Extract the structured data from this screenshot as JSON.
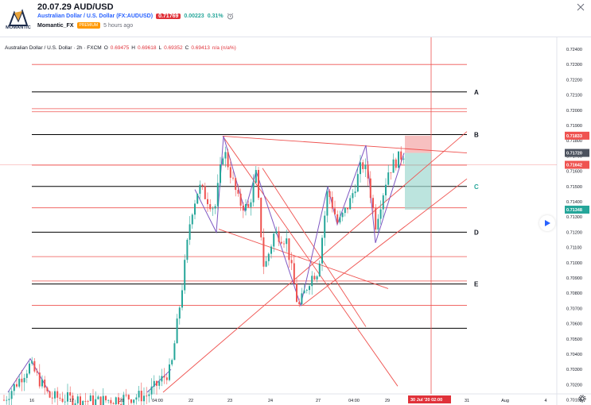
{
  "header": {
    "logo_text": "MOMANTIC",
    "title": "20.07.29 AUD/USD",
    "symbol_name": "Australian Dollar / U.S. Dollar (FX:AUDUSD)",
    "last_price": "0.71769",
    "change": "0.00223",
    "change_pct": "0.31%",
    "author": "Momantic_FX",
    "author_badge": "PREMIUM",
    "time_ago": "5 hours ago"
  },
  "chart": {
    "legend_symbol": "Australian Dollar / U.S. Dollar · 2h · FXCM",
    "open_label": "O",
    "open": "0.69475",
    "high_label": "H",
    "high": "0.69618",
    "low_label": "L",
    "low": "0.69352",
    "close_label": "C",
    "close": "0.69413",
    "change_value": "n/a (n/a%)",
    "level_labels": [
      "A",
      "B",
      "C",
      "D",
      "E"
    ],
    "price_ticks": [
      "0.72400",
      "0.72300",
      "0.72200",
      "0.72100",
      "0.72000",
      "0.71900",
      "0.71800",
      "0.71700",
      "0.71600",
      "0.71500",
      "0.71400",
      "0.71300",
      "0.71200",
      "0.71100",
      "0.71000",
      "0.70900",
      "0.70800",
      "0.70700",
      "0.70600",
      "0.70500",
      "0.70400",
      "0.70300",
      "0.70200",
      "0.70100"
    ],
    "price_badges": [
      {
        "value": "0.71833",
        "color": "#ef5350"
      },
      {
        "value": "0.71720",
        "color": "#4c525e"
      },
      {
        "value": "0.71642",
        "color": "#ef5350"
      },
      {
        "value": "0.71348",
        "color": "#26a69a"
      }
    ],
    "time_ticks": [
      "16",
      "17",
      "20",
      "04:00",
      "22",
      "23",
      "24",
      "27",
      "04:00",
      "29",
      "31",
      "Aug",
      "4"
    ],
    "cursor_date": "30 Jul '20",
    "cursor_time": "02:00",
    "colors": {
      "up": "#26a69a",
      "down": "#ef5350",
      "red_line": "#ef5350",
      "level": "#000000",
      "pattern": "#7e57c2"
    },
    "chart_data": {
      "type": "candlestick",
      "series": [
        {
          "name": "AUDUSD 2h",
          "values": []
        }
      ]
    }
  }
}
